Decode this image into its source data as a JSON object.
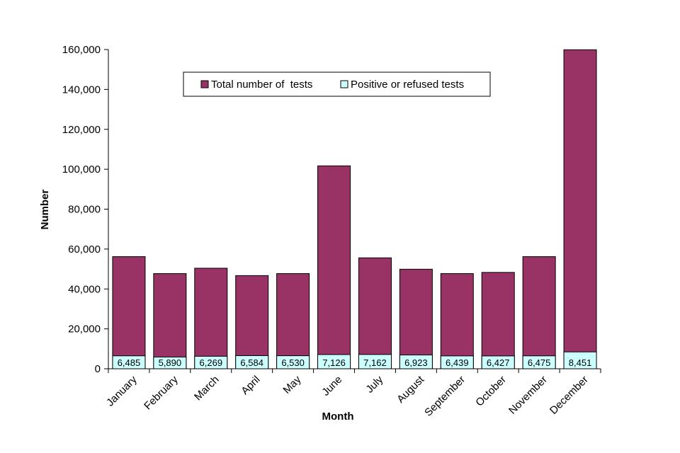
{
  "chart_data": {
    "type": "bar",
    "subtype": "stacked",
    "categories": [
      "January",
      "February",
      "March",
      "April",
      "May",
      "June",
      "July",
      "August",
      "September",
      "October",
      "November",
      "December"
    ],
    "series": [
      {
        "name": "Total number of  tests",
        "color": "#993366",
        "values": [
          56200,
          47700,
          50400,
          46700,
          47700,
          101700,
          55600,
          49900,
          47700,
          48300,
          56200,
          159900
        ]
      },
      {
        "name": "Positive or refused tests",
        "color": "#CCFFFF",
        "values": [
          6485,
          5890,
          6269,
          6584,
          6530,
          7126,
          7162,
          6923,
          6439,
          6427,
          6475,
          8451
        ],
        "labels": [
          "6,485",
          "5,890",
          "6,269",
          "6,584",
          "6,530",
          "7,126",
          "7,162",
          "6,923",
          "6,439",
          "6,427",
          "6,475",
          "8,451"
        ]
      }
    ],
    "title": "",
    "xlabel": "Month",
    "ylabel": "Number",
    "ylim": [
      0,
      160000
    ],
    "yticks": [
      0,
      20000,
      40000,
      60000,
      80000,
      100000,
      120000,
      140000,
      160000
    ],
    "ytick_labels": [
      "0",
      "20,000",
      "40,000",
      "60,000",
      "80,000",
      "100,000",
      "120,000",
      "140,000",
      "160,000"
    ],
    "grid": false,
    "legend_position": "top-center"
  }
}
